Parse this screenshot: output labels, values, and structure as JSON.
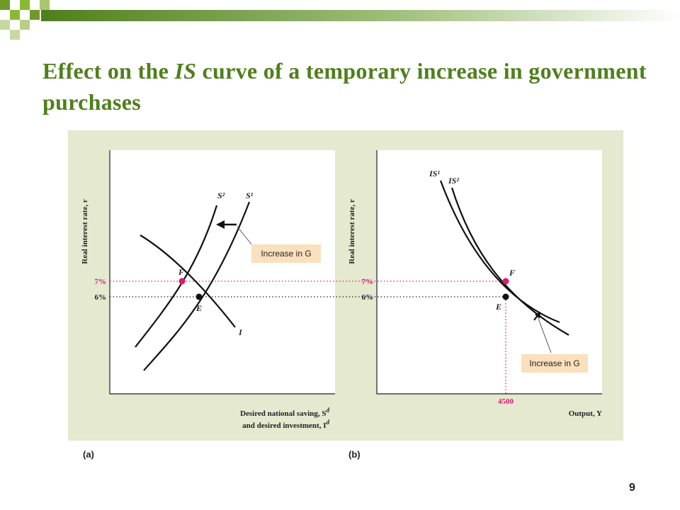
{
  "slide": {
    "title_prefix": "Effect on the ",
    "title_italic": "IS",
    "title_suffix": " curve of a temporary increase in government purchases",
    "page_number": "9",
    "panel_a_label": "(a)",
    "panel_b_label": "(b)",
    "accent_color": "#4f7f1c",
    "highlight_color": "#e0196b"
  },
  "chart_data": [
    {
      "type": "line",
      "panel": "a",
      "ylabel": "Real interest rate, r",
      "xlabel_line1": "Desired national saving, S",
      "xlabel_line1_sup": "d",
      "xlabel_line2": "and desired investment, I",
      "xlabel_line2_sup": "d",
      "ytick_labels": [
        "7%",
        "6%"
      ],
      "yticks": [
        7,
        6
      ],
      "series": [
        {
          "name": "S¹",
          "color": "#111111"
        },
        {
          "name": "S²",
          "color": "#111111"
        },
        {
          "name": "I",
          "color": "#111111"
        }
      ],
      "points": [
        {
          "label": "E",
          "r": 6,
          "color": "#111111"
        },
        {
          "label": "F",
          "r": 7,
          "color": "#e0196b"
        }
      ],
      "annotation": "Increase in G",
      "annotation_direction": "left"
    },
    {
      "type": "line",
      "panel": "b",
      "ylabel": "Real interest rate, r",
      "xlabel": "Output, Y",
      "ytick_labels": [
        "7%",
        "6%"
      ],
      "yticks": [
        7,
        6
      ],
      "xtick_labels": [
        "4500"
      ],
      "xticks": [
        4500
      ],
      "series": [
        {
          "name": "IS¹",
          "color": "#111111"
        },
        {
          "name": "IS²",
          "color": "#111111"
        }
      ],
      "points": [
        {
          "label": "E",
          "Y": 4500,
          "r": 6,
          "color": "#111111"
        },
        {
          "label": "F",
          "Y": 4500,
          "r": 7,
          "color": "#e0196b"
        }
      ],
      "annotation": "Increase in G",
      "annotation_direction": "right"
    }
  ]
}
